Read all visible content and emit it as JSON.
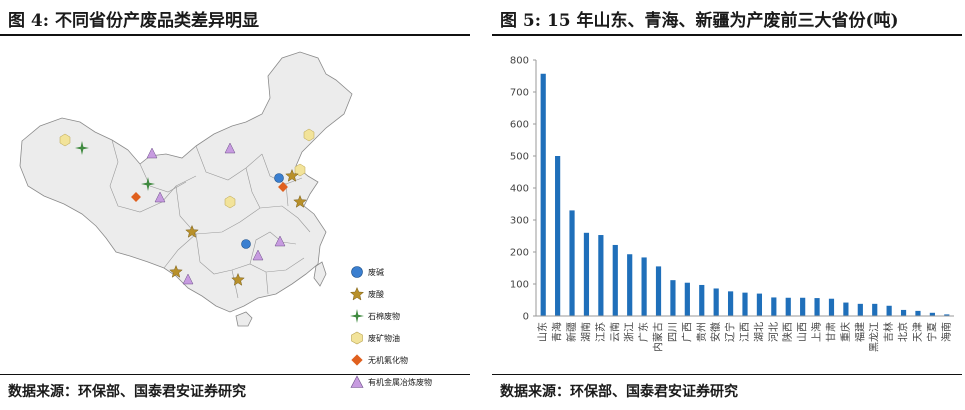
{
  "left": {
    "title": "图 4:  不同省份产废品类差异明显",
    "source": "数据来源：环保部、国泰君安证券研究",
    "legend": [
      {
        "label": "废碱",
        "shape": "circle",
        "color": "#3a7fd0"
      },
      {
        "label": "废酸",
        "shape": "star",
        "color": "#b8902a"
      },
      {
        "label": "石棉废物",
        "shape": "cross-star",
        "color": "#3f8a3f"
      },
      {
        "label": "废矿物油",
        "shape": "hexagon",
        "color": "#f2e39a"
      },
      {
        "label": "无机氟化物",
        "shape": "diamond",
        "color": "#e0601e"
      },
      {
        "label": "有机金属冶炼废物",
        "shape": "triangle",
        "color": "#c79be0"
      }
    ]
  },
  "right": {
    "title": "图 5: 15 年山东、青海、新疆为产废前三大省份(吨)",
    "source": "数据来源：环保部、国泰君安证券研究"
  },
  "chart_data": {
    "type": "bar",
    "title": "15 年山东、青海、新疆为产废前三大省份(吨)",
    "xlabel": "",
    "ylabel": "",
    "ylim": [
      0,
      800
    ],
    "yticks": [
      0,
      100,
      200,
      300,
      400,
      500,
      600,
      700,
      800
    ],
    "grid": false,
    "bar_color": "#1f6fba",
    "categories": [
      "山东",
      "青海",
      "新疆",
      "湖南",
      "江苏",
      "云南",
      "浙江",
      "广东",
      "内蒙古",
      "四川",
      "广西",
      "贵州",
      "安徽",
      "辽宁",
      "江西",
      "湖北",
      "河北",
      "陕西",
      "山西",
      "上海",
      "甘肃",
      "重庆",
      "福建",
      "黑龙江",
      "吉林",
      "北京",
      "天津",
      "宁夏",
      "海南"
    ],
    "values": [
      757,
      500,
      330,
      260,
      253,
      222,
      193,
      183,
      155,
      112,
      104,
      97,
      86,
      77,
      73,
      70,
      58,
      57,
      57,
      56,
      54,
      42,
      38,
      38,
      32,
      19,
      16,
      10,
      5
    ]
  }
}
